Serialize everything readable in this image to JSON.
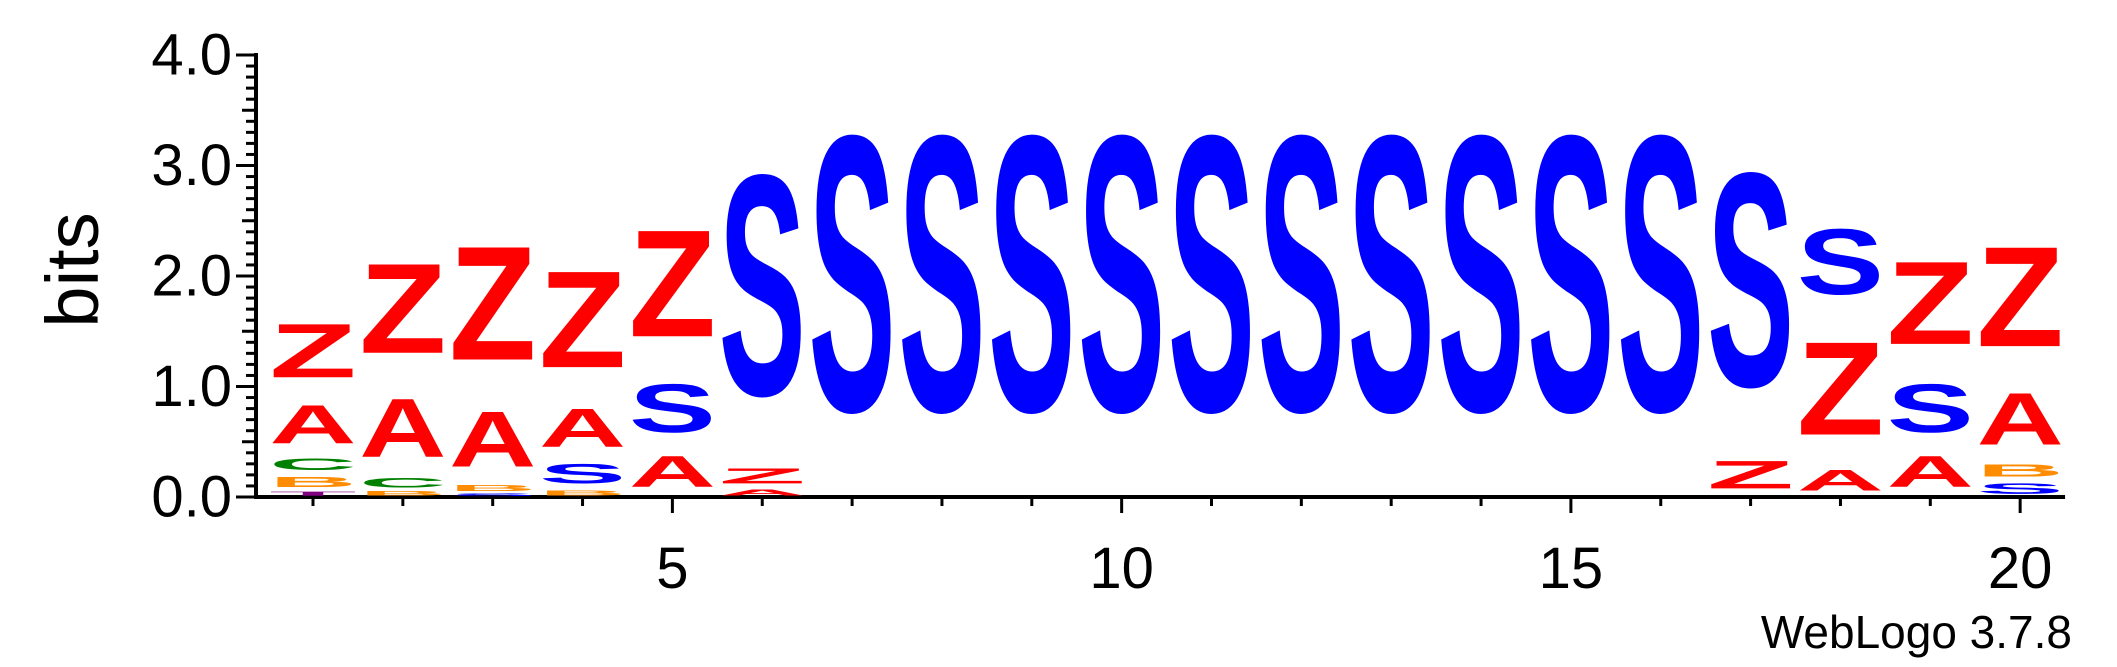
{
  "chart_data": {
    "type": "sequence-logo",
    "ylabel": "bits",
    "ylim": [
      0,
      4.0
    ],
    "y_ticks": [
      "0.0",
      "1.0",
      "2.0",
      "3.0",
      "4.0"
    ],
    "x_ticks": [
      5,
      10,
      15,
      20
    ],
    "positions": [
      1,
      2,
      3,
      4,
      5,
      6,
      7,
      8,
      9,
      10,
      11,
      12,
      13,
      14,
      15,
      16,
      17,
      18,
      19,
      20
    ],
    "colors": {
      "Z": "#ff0000",
      "A": "#ff0000",
      "S": "#0000ff",
      "C": "#008000",
      "B": "#ff8c00",
      "T": "#800080",
      "D": "#ff0000"
    },
    "stacks": [
      [
        [
          "T",
          0.06
        ],
        [
          "B",
          0.15
        ],
        [
          "C",
          0.17
        ],
        [
          "A",
          0.55
        ],
        [
          "Z",
          0.78
        ]
      ],
      [
        [
          "B",
          0.06
        ],
        [
          "C",
          0.14
        ],
        [
          "A",
          0.85
        ],
        [
          "Z",
          1.3
        ]
      ],
      [
        [
          "S",
          0.04
        ],
        [
          "B",
          0.08
        ],
        [
          "A",
          0.8
        ],
        [
          "Z",
          1.65
        ]
      ],
      [
        [
          "B",
          0.07
        ],
        [
          "S",
          0.28
        ],
        [
          "A",
          0.55
        ],
        [
          "Z",
          1.4
        ]
      ],
      [
        [
          "A",
          0.45
        ],
        [
          "S",
          0.7
        ],
        [
          "Z",
          1.55
        ]
      ],
      [
        [
          "A",
          0.08
        ],
        [
          "Z",
          0.22
        ],
        [
          "S",
          3.2
        ]
      ],
      [
        [
          "S",
          4.0
        ]
      ],
      [
        [
          "S",
          4.0
        ]
      ],
      [
        [
          "S",
          4.0
        ]
      ],
      [
        [
          "S",
          4.0
        ]
      ],
      [
        [
          "S",
          4.0
        ]
      ],
      [
        [
          "S",
          4.0
        ]
      ],
      [
        [
          "S",
          4.0
        ]
      ],
      [
        [
          "S",
          4.0
        ]
      ],
      [
        [
          "S",
          4.0
        ]
      ],
      [
        [
          "S",
          4.0
        ]
      ],
      [
        [
          "Z",
          0.4
        ],
        [
          "S",
          3.1
        ]
      ],
      [
        [
          "A",
          0.3
        ],
        [
          "Z",
          1.35
        ],
        [
          "S",
          0.95
        ]
      ],
      [
        [
          "A",
          0.45
        ],
        [
          "S",
          0.7
        ],
        [
          "Z",
          1.2
        ]
      ],
      [
        [
          "S",
          0.15
        ],
        [
          "B",
          0.18
        ],
        [
          "A",
          0.75
        ],
        [
          "Z",
          1.45
        ]
      ]
    ],
    "footer": "WebLogo 3.7.8"
  }
}
